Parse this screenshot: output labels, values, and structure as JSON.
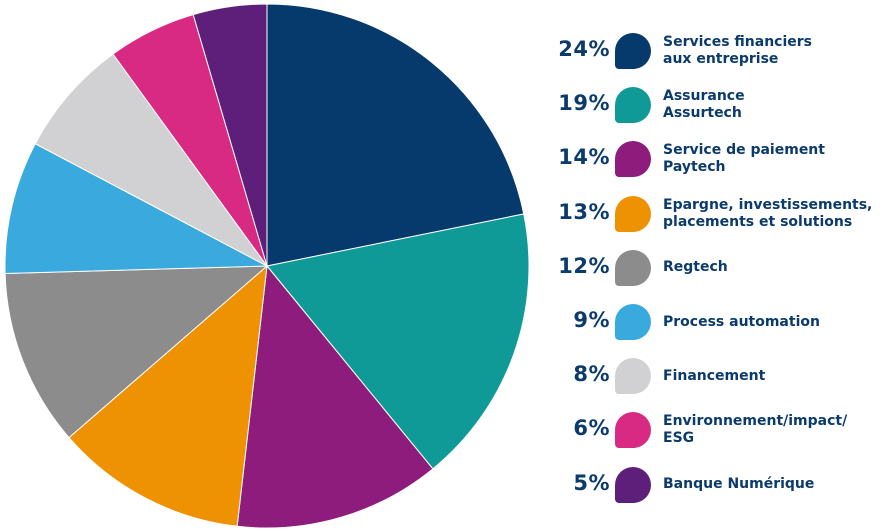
{
  "chart_data": {
    "type": "pie",
    "slices": [
      {
        "value": 24,
        "label_pct": "24%",
        "label_line1": "Services financiers",
        "label_line2": "aux entreprise",
        "color": "#063a6c"
      },
      {
        "value": 19,
        "label_pct": "19%",
        "label_line1": "Assurance",
        "label_line2": "Assurtech",
        "color": "#0f9a98"
      },
      {
        "value": 14,
        "label_pct": "14%",
        "label_line1": "Service de paiement",
        "label_line2": "Paytech",
        "color": "#8e1c7c"
      },
      {
        "value": 13,
        "label_pct": "13%",
        "label_line1": "Epargne, investissements,",
        "label_line2": "placements et solutions",
        "color": "#ee9203"
      },
      {
        "value": 12,
        "label_pct": "12%",
        "label_line1": "Regtech",
        "label_line2": "",
        "color": "#8c8c8c"
      },
      {
        "value": 9,
        "label_pct": "9%",
        "label_line1": "Process automation",
        "label_line2": "",
        "color": "#3aa9de"
      },
      {
        "value": 8,
        "label_pct": "8%",
        "label_line1": "Financement",
        "label_line2": "",
        "color": "#d1d1d3"
      },
      {
        "value": 6,
        "label_pct": "6%",
        "label_line1": "Environnement/impact/",
        "label_line2": "ESG",
        "color": "#d82a83"
      },
      {
        "value": 5,
        "label_pct": "5%",
        "label_line1": "Banque Numérique",
        "label_line2": "",
        "color": "#5e1f7a"
      }
    ],
    "start": "12 o'clock",
    "direction": "clockwise",
    "legend_position": "right"
  }
}
